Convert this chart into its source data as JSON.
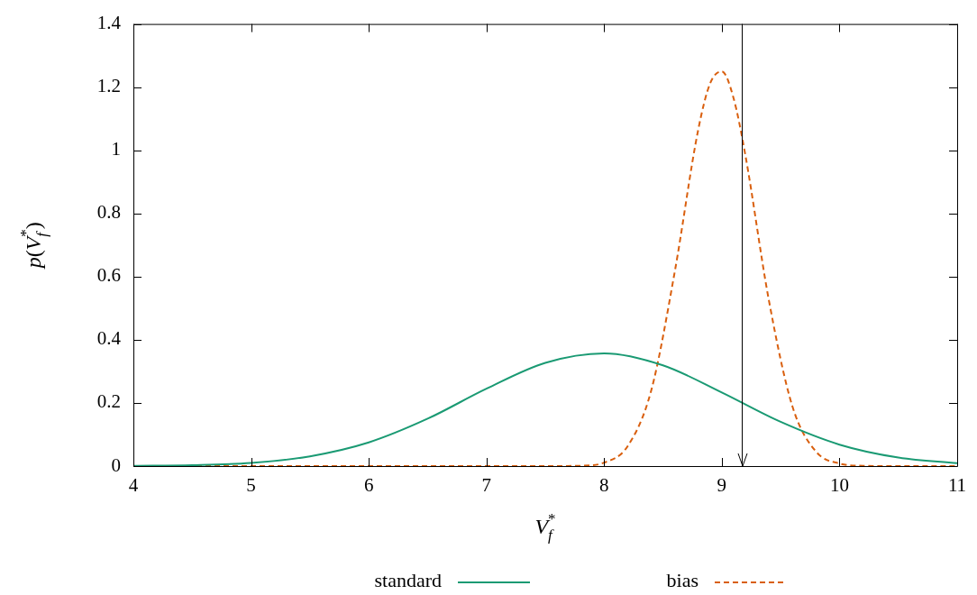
{
  "chart_data": {
    "type": "line",
    "xlabel": "V$_{f}$$^{*}$",
    "ylabel": "p(V$_{f}$$^{*}$)",
    "xlim": [
      4,
      11
    ],
    "xticks": [
      4,
      5,
      6,
      7,
      8,
      9,
      10,
      11
    ],
    "ylim": [
      0,
      1.4
    ],
    "yticks": [
      0,
      0.2,
      0.4,
      0.6,
      0.8,
      1,
      1.2,
      1.4
    ],
    "grid": false,
    "legend": "bottom",
    "marker": "none",
    "series": [
      {
        "name": "standard",
        "color": "#1a9a73",
        "line_style": "solid",
        "x": [
          4,
          4.5,
          5,
          5.5,
          6,
          6.5,
          7,
          7.5,
          8,
          8.5,
          9,
          9.5,
          10,
          10.5,
          11
        ],
        "values": [
          0.001,
          0.003,
          0.01,
          0.031,
          0.075,
          0.15,
          0.245,
          0.327,
          0.357,
          0.319,
          0.233,
          0.14,
          0.068,
          0.027,
          0.009
        ]
      },
      {
        "name": "bias",
        "color": "#d95f0e",
        "line_style": "dashed",
        "x": [
          4,
          5,
          6,
          7,
          7.5,
          7.8,
          8,
          8.2,
          8.4,
          8.6,
          8.8,
          8.9,
          9,
          9.1,
          9.2,
          9.4,
          9.6,
          9.8,
          10,
          10.2,
          10.5,
          11
        ],
        "values": [
          0,
          0,
          0,
          0,
          0,
          0.001,
          0.011,
          0.063,
          0.239,
          0.615,
          1.066,
          1.211,
          1.25,
          1.165,
          0.985,
          0.525,
          0.189,
          0.046,
          0.008,
          0.001,
          0,
          0
        ]
      }
    ],
    "ref_lines": [
      {
        "axis": "x",
        "value": 9.17,
        "color": "#000000"
      }
    ]
  }
}
